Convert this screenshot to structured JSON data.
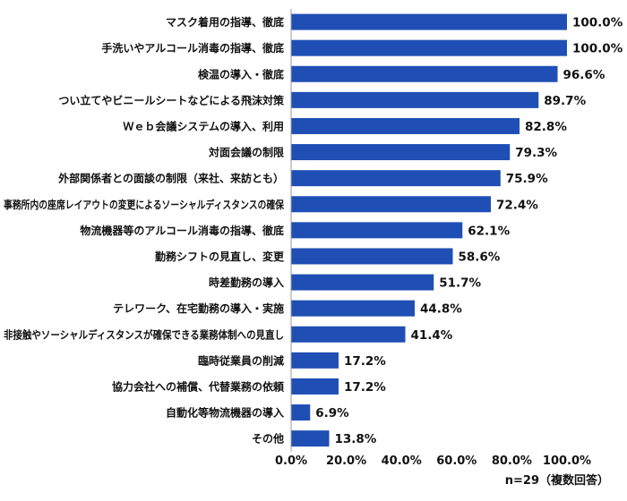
{
  "chart_data": {
    "type": "bar",
    "orientation": "horizontal",
    "categories": [
      "マスク着用の指導、徹底",
      "手洗いやアルコール消毒の指導、徹底",
      "検温の導入・徹底",
      "つい立てやビニールシートなどによる飛沫対策",
      "Ｗｅｂ会議システムの導入、利用",
      "対面会議の制限",
      "外部関係者との面談の制限（来社、来訪とも）",
      "事務所内の座席レイアウトの変更によるソーシャルディスタンスの確保",
      "物流機器等のアルコール消毒の指導、徹底",
      "勤務シフトの見直し、変更",
      "時差勤務の導入",
      "テレワーク、在宅勤務の導入・実施",
      "非接触やソーシャルディスタンスが確保できる業務体制への見直し",
      "臨時従業員の削減",
      "協力会社への補償、代替業務の依頼",
      "自動化等物流機器の導入",
      "その他"
    ],
    "values": [
      100.0,
      100.0,
      96.6,
      89.7,
      82.8,
      79.3,
      75.9,
      72.4,
      62.1,
      58.6,
      51.7,
      44.8,
      41.4,
      17.2,
      17.2,
      6.9,
      13.8
    ],
    "value_labels": [
      "100.0%",
      "100.0%",
      "96.6%",
      "89.7%",
      "82.8%",
      "79.3%",
      "75.9%",
      "72.4%",
      "62.1%",
      "58.6%",
      "51.7%",
      "44.8%",
      "41.4%",
      "17.2%",
      "17.2%",
      "6.9%",
      "13.8%"
    ],
    "xlim": [
      0,
      100
    ],
    "xticks": [
      "0.0%",
      "20.0%",
      "40.0%",
      "60.0%",
      "80.0%",
      "100.0%"
    ],
    "bar_color": "#1f4fb4",
    "grid": false,
    "title": "",
    "xlabel": "",
    "ylabel": ""
  },
  "note": "n=29（複数回答）"
}
